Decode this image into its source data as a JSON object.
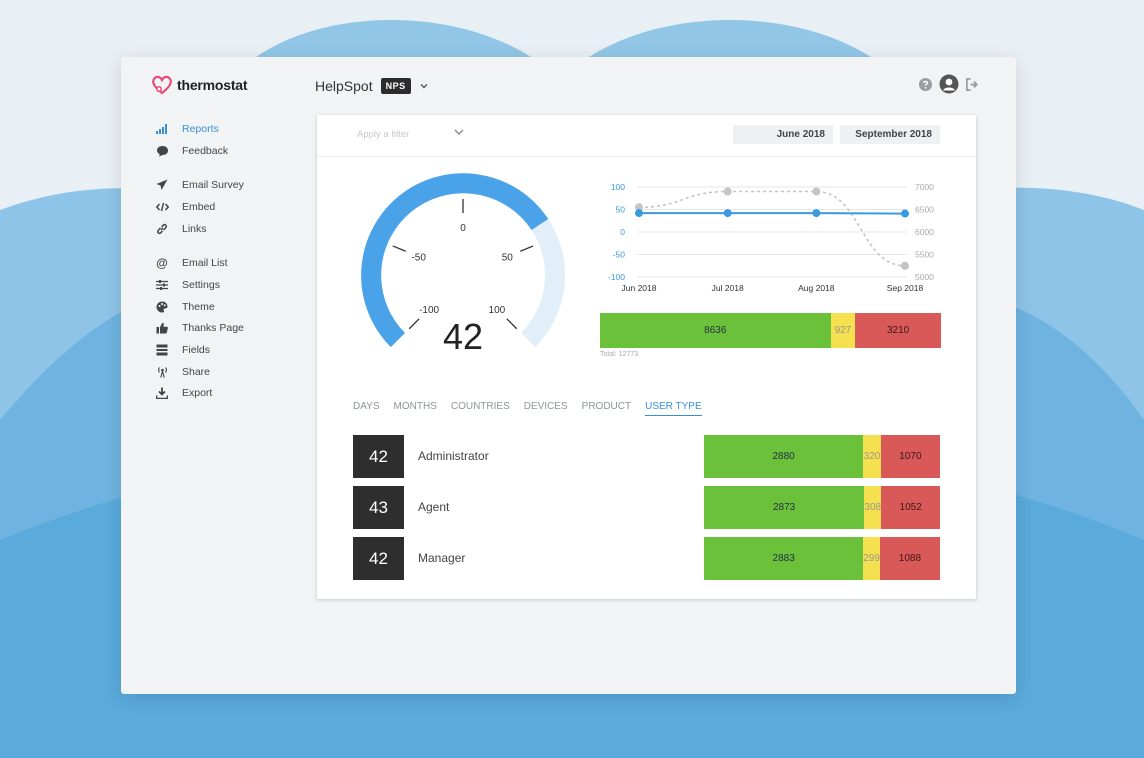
{
  "app": {
    "logo_text": "thermostat",
    "name": "HelpSpot",
    "badge": "NPS"
  },
  "sidebar": {
    "groups": [
      [
        {
          "label": "Reports",
          "icon": "bar-chart-icon",
          "active": true
        },
        {
          "label": "Feedback",
          "icon": "speech-bubble-icon"
        }
      ],
      [
        {
          "label": "Email Survey",
          "icon": "paper-plane-icon"
        },
        {
          "label": "Embed",
          "icon": "code-icon"
        },
        {
          "label": "Links",
          "icon": "link-icon"
        }
      ],
      [
        {
          "label": "Email List",
          "icon": "at-icon"
        },
        {
          "label": "Settings",
          "icon": "sliders-icon"
        },
        {
          "label": "Theme",
          "icon": "palette-icon"
        },
        {
          "label": "Thanks Page",
          "icon": "thumbs-up-icon"
        },
        {
          "label": "Fields",
          "icon": "fields-icon"
        },
        {
          "label": "Share",
          "icon": "broadcast-icon"
        },
        {
          "label": "Export",
          "icon": "download-icon"
        }
      ]
    ]
  },
  "filter": {
    "placeholder": "Apply a filter",
    "date_from": "June 2018",
    "date_to": "September 2018"
  },
  "gauge": {
    "score": "42",
    "value": 42,
    "min": -100,
    "max": 100,
    "ticks": [
      "-100",
      "-50",
      "0",
      "50",
      "100"
    ]
  },
  "chart_data": {
    "type": "line",
    "x": [
      "Jun 2018",
      "Jul 2018",
      "Aug 2018",
      "Sep 2018"
    ],
    "left_axis": {
      "ticks": [
        "100",
        "50",
        "0",
        "-50",
        "-100"
      ],
      "ylim": [
        -100,
        100
      ]
    },
    "right_axis": {
      "ticks": [
        "7000",
        "6500",
        "6000",
        "5500",
        "5000"
      ],
      "ylim": [
        5000,
        7000
      ]
    },
    "series": [
      {
        "axis": "left",
        "color": "#3a9ae0",
        "values": [
          42,
          42,
          42,
          41
        ]
      },
      {
        "axis": "right",
        "color": "#c4c4c4",
        "style": "dashed",
        "values": [
          6550,
          6900,
          6900,
          5250
        ]
      }
    ]
  },
  "breakdown": {
    "promoters": "8636",
    "passives": "927",
    "detractors": "3210",
    "total": "Total: 12773"
  },
  "tabs": [
    {
      "label": "DAYS"
    },
    {
      "label": "MONTHS"
    },
    {
      "label": "COUNTRIES"
    },
    {
      "label": "DEVICES"
    },
    {
      "label": "PRODUCT"
    },
    {
      "label": "USER TYPE",
      "active": true
    }
  ],
  "rows": [
    {
      "score": "42",
      "label": "Administrator",
      "promoters": "2880",
      "passives": "320",
      "detractors": "1070"
    },
    {
      "score": "43",
      "label": "Agent",
      "promoters": "2873",
      "passives": "308",
      "detractors": "1052"
    },
    {
      "score": "42",
      "label": "Manager",
      "promoters": "2883",
      "passives": "299",
      "detractors": "1088"
    }
  ],
  "colors": {
    "accent": "#3a8fd9",
    "promoter": "#6cc13a",
    "passive": "#f5e04f",
    "detractor": "#d95858",
    "gauge": "#4aa3e8",
    "gauge_track": "#e2eff9"
  }
}
